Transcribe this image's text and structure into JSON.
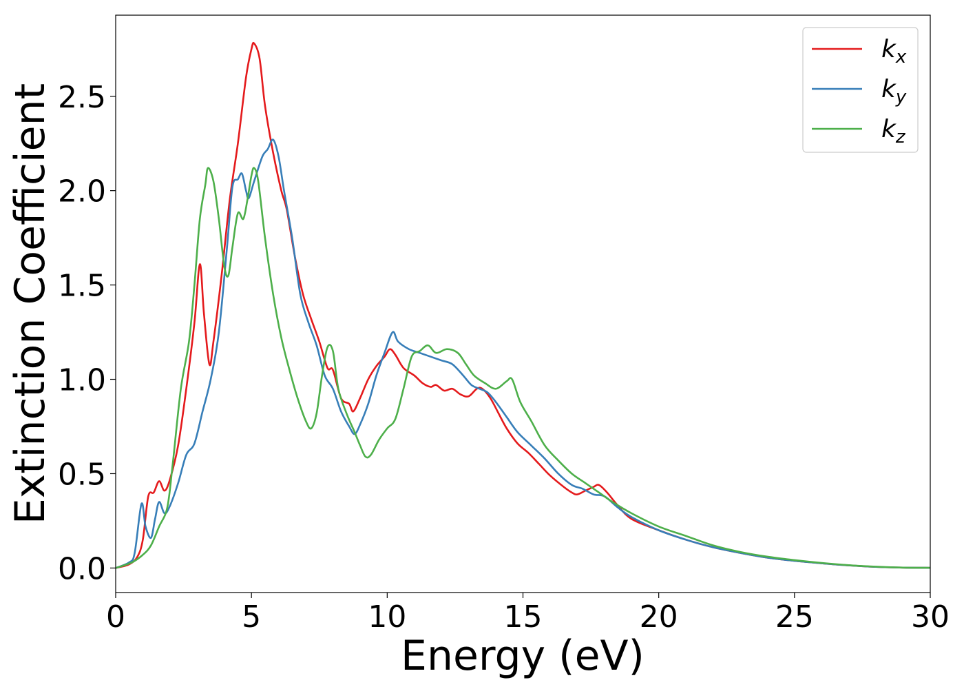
{
  "chart_data": {
    "type": "line",
    "xlabel": "Energy (eV)",
    "ylabel": "Extinction Coefficient",
    "xlim": [
      0,
      30
    ],
    "ylim": [
      -0.13,
      2.93
    ],
    "xticks": [
      "0",
      "5",
      "10",
      "15",
      "20",
      "25",
      "30"
    ],
    "yticks": [
      "0.0",
      "0.5",
      "1.0",
      "1.5",
      "2.0",
      "2.5"
    ],
    "grid": false,
    "legend_position": "top-right",
    "series": [
      {
        "name": "k_x",
        "label_main": "k",
        "label_sub": "x",
        "color": "#e41a1c",
        "points": [
          [
            0,
            0
          ],
          [
            0.5,
            0.02
          ],
          [
            0.8,
            0.06
          ],
          [
            1.0,
            0.15
          ],
          [
            1.2,
            0.38
          ],
          [
            1.4,
            0.4
          ],
          [
            1.6,
            0.46
          ],
          [
            1.8,
            0.41
          ],
          [
            2.0,
            0.47
          ],
          [
            2.3,
            0.65
          ],
          [
            2.6,
            0.95
          ],
          [
            2.9,
            1.3
          ],
          [
            3.1,
            1.61
          ],
          [
            3.25,
            1.35
          ],
          [
            3.45,
            1.08
          ],
          [
            3.6,
            1.2
          ],
          [
            3.9,
            1.55
          ],
          [
            4.2,
            1.95
          ],
          [
            4.5,
            2.25
          ],
          [
            4.8,
            2.6
          ],
          [
            5.0,
            2.75
          ],
          [
            5.1,
            2.78
          ],
          [
            5.3,
            2.7
          ],
          [
            5.5,
            2.45
          ],
          [
            5.8,
            2.2
          ],
          [
            6.1,
            2.0
          ],
          [
            6.3,
            1.9
          ],
          [
            6.6,
            1.65
          ],
          [
            6.9,
            1.45
          ],
          [
            7.2,
            1.32
          ],
          [
            7.5,
            1.2
          ],
          [
            7.8,
            1.06
          ],
          [
            8.0,
            1.05
          ],
          [
            8.3,
            0.9
          ],
          [
            8.6,
            0.87
          ],
          [
            8.75,
            0.83
          ],
          [
            9.0,
            0.9
          ],
          [
            9.3,
            1.0
          ],
          [
            9.6,
            1.07
          ],
          [
            9.9,
            1.12
          ],
          [
            10.1,
            1.16
          ],
          [
            10.3,
            1.13
          ],
          [
            10.6,
            1.06
          ],
          [
            11.0,
            1.02
          ],
          [
            11.3,
            0.98
          ],
          [
            11.6,
            0.96
          ],
          [
            11.8,
            0.97
          ],
          [
            12.1,
            0.94
          ],
          [
            12.4,
            0.95
          ],
          [
            12.7,
            0.92
          ],
          [
            13.0,
            0.91
          ],
          [
            13.3,
            0.95
          ],
          [
            13.5,
            0.95
          ],
          [
            13.8,
            0.9
          ],
          [
            14.1,
            0.82
          ],
          [
            14.4,
            0.74
          ],
          [
            14.8,
            0.66
          ],
          [
            15.2,
            0.61
          ],
          [
            15.6,
            0.55
          ],
          [
            16.0,
            0.49
          ],
          [
            16.5,
            0.43
          ],
          [
            16.8,
            0.4
          ],
          [
            17.0,
            0.39
          ],
          [
            17.3,
            0.41
          ],
          [
            17.6,
            0.43
          ],
          [
            17.8,
            0.44
          ],
          [
            18.1,
            0.4
          ],
          [
            18.5,
            0.33
          ],
          [
            19.0,
            0.26
          ],
          [
            20.0,
            0.2
          ],
          [
            21.0,
            0.15
          ],
          [
            22.0,
            0.11
          ],
          [
            23.0,
            0.08
          ],
          [
            24.0,
            0.055
          ],
          [
            25.0,
            0.038
          ],
          [
            26.0,
            0.025
          ],
          [
            27.0,
            0.014
          ],
          [
            28.0,
            0.006
          ],
          [
            29.0,
            0.002
          ],
          [
            30.0,
            0.001
          ]
        ]
      },
      {
        "name": "k_y",
        "label_main": "k",
        "label_sub": "y",
        "color": "#377eb8",
        "points": [
          [
            0,
            0
          ],
          [
            0.5,
            0.03
          ],
          [
            0.7,
            0.08
          ],
          [
            0.95,
            0.34
          ],
          [
            1.1,
            0.22
          ],
          [
            1.3,
            0.16
          ],
          [
            1.45,
            0.26
          ],
          [
            1.6,
            0.35
          ],
          [
            1.8,
            0.29
          ],
          [
            2.0,
            0.33
          ],
          [
            2.3,
            0.45
          ],
          [
            2.6,
            0.6
          ],
          [
            2.9,
            0.66
          ],
          [
            3.2,
            0.83
          ],
          [
            3.5,
            1.0
          ],
          [
            3.8,
            1.25
          ],
          [
            4.1,
            1.7
          ],
          [
            4.3,
            2.02
          ],
          [
            4.5,
            2.06
          ],
          [
            4.65,
            2.09
          ],
          [
            4.8,
            2.0
          ],
          [
            4.9,
            1.96
          ],
          [
            5.1,
            2.05
          ],
          [
            5.4,
            2.18
          ],
          [
            5.6,
            2.22
          ],
          [
            5.8,
            2.27
          ],
          [
            6.0,
            2.18
          ],
          [
            6.2,
            2.0
          ],
          [
            6.5,
            1.75
          ],
          [
            6.8,
            1.45
          ],
          [
            7.1,
            1.3
          ],
          [
            7.4,
            1.18
          ],
          [
            7.7,
            1.02
          ],
          [
            8.0,
            0.95
          ],
          [
            8.3,
            0.83
          ],
          [
            8.6,
            0.75
          ],
          [
            8.8,
            0.71
          ],
          [
            9.0,
            0.76
          ],
          [
            9.3,
            0.87
          ],
          [
            9.6,
            1.02
          ],
          [
            9.9,
            1.14
          ],
          [
            10.2,
            1.25
          ],
          [
            10.4,
            1.2
          ],
          [
            10.8,
            1.16
          ],
          [
            11.2,
            1.14
          ],
          [
            11.6,
            1.12
          ],
          [
            12.0,
            1.1
          ],
          [
            12.4,
            1.08
          ],
          [
            12.8,
            1.02
          ],
          [
            13.1,
            0.97
          ],
          [
            13.4,
            0.95
          ],
          [
            13.7,
            0.93
          ],
          [
            14.0,
            0.88
          ],
          [
            14.4,
            0.8
          ],
          [
            14.8,
            0.72
          ],
          [
            15.3,
            0.65
          ],
          [
            15.8,
            0.58
          ],
          [
            16.3,
            0.5
          ],
          [
            16.8,
            0.44
          ],
          [
            17.2,
            0.42
          ],
          [
            17.6,
            0.39
          ],
          [
            18.0,
            0.38
          ],
          [
            18.5,
            0.32
          ],
          [
            19.0,
            0.27
          ],
          [
            20.0,
            0.2
          ],
          [
            21.0,
            0.15
          ],
          [
            22.0,
            0.11
          ],
          [
            23.0,
            0.08
          ],
          [
            24.0,
            0.055
          ],
          [
            25.0,
            0.038
          ],
          [
            26.0,
            0.025
          ],
          [
            27.0,
            0.014
          ],
          [
            28.0,
            0.006
          ],
          [
            29.0,
            0.002
          ],
          [
            30.0,
            0.001
          ]
        ]
      },
      {
        "name": "k_z",
        "label_main": "k",
        "label_sub": "z",
        "color": "#4daf4a",
        "points": [
          [
            0,
            0
          ],
          [
            0.6,
            0.03
          ],
          [
            1.0,
            0.07
          ],
          [
            1.3,
            0.12
          ],
          [
            1.6,
            0.22
          ],
          [
            1.9,
            0.32
          ],
          [
            2.1,
            0.55
          ],
          [
            2.4,
            0.95
          ],
          [
            2.7,
            1.2
          ],
          [
            2.9,
            1.5
          ],
          [
            3.1,
            1.85
          ],
          [
            3.3,
            2.03
          ],
          [
            3.4,
            2.12
          ],
          [
            3.6,
            2.05
          ],
          [
            3.8,
            1.85
          ],
          [
            4.0,
            1.6
          ],
          [
            4.15,
            1.55
          ],
          [
            4.3,
            1.7
          ],
          [
            4.5,
            1.88
          ],
          [
            4.7,
            1.85
          ],
          [
            4.85,
            1.95
          ],
          [
            5.0,
            2.08
          ],
          [
            5.1,
            2.12
          ],
          [
            5.25,
            2.05
          ],
          [
            5.5,
            1.75
          ],
          [
            5.8,
            1.45
          ],
          [
            6.1,
            1.22
          ],
          [
            6.4,
            1.05
          ],
          [
            6.7,
            0.9
          ],
          [
            7.0,
            0.78
          ],
          [
            7.2,
            0.74
          ],
          [
            7.4,
            0.82
          ],
          [
            7.6,
            1.02
          ],
          [
            7.8,
            1.17
          ],
          [
            8.0,
            1.15
          ],
          [
            8.2,
            0.95
          ],
          [
            8.5,
            0.82
          ],
          [
            8.8,
            0.72
          ],
          [
            9.0,
            0.65
          ],
          [
            9.2,
            0.59
          ],
          [
            9.4,
            0.6
          ],
          [
            9.7,
            0.68
          ],
          [
            10.0,
            0.74
          ],
          [
            10.3,
            0.79
          ],
          [
            10.6,
            0.95
          ],
          [
            10.9,
            1.12
          ],
          [
            11.2,
            1.15
          ],
          [
            11.5,
            1.18
          ],
          [
            11.8,
            1.14
          ],
          [
            12.2,
            1.16
          ],
          [
            12.6,
            1.14
          ],
          [
            12.9,
            1.08
          ],
          [
            13.2,
            1.02
          ],
          [
            13.6,
            0.98
          ],
          [
            14.0,
            0.95
          ],
          [
            14.4,
            0.99
          ],
          [
            14.6,
            1.0
          ],
          [
            14.9,
            0.88
          ],
          [
            15.3,
            0.78
          ],
          [
            15.8,
            0.65
          ],
          [
            16.3,
            0.57
          ],
          [
            16.8,
            0.5
          ],
          [
            17.3,
            0.45
          ],
          [
            17.8,
            0.4
          ],
          [
            18.3,
            0.35
          ],
          [
            19.0,
            0.29
          ],
          [
            20.0,
            0.22
          ],
          [
            21.0,
            0.17
          ],
          [
            22.0,
            0.12
          ],
          [
            23.0,
            0.085
          ],
          [
            24.0,
            0.06
          ],
          [
            25.0,
            0.042
          ],
          [
            26.0,
            0.027
          ],
          [
            27.0,
            0.015
          ],
          [
            28.0,
            0.007
          ],
          [
            29.0,
            0.002
          ],
          [
            30.0,
            0.001
          ]
        ]
      }
    ]
  }
}
